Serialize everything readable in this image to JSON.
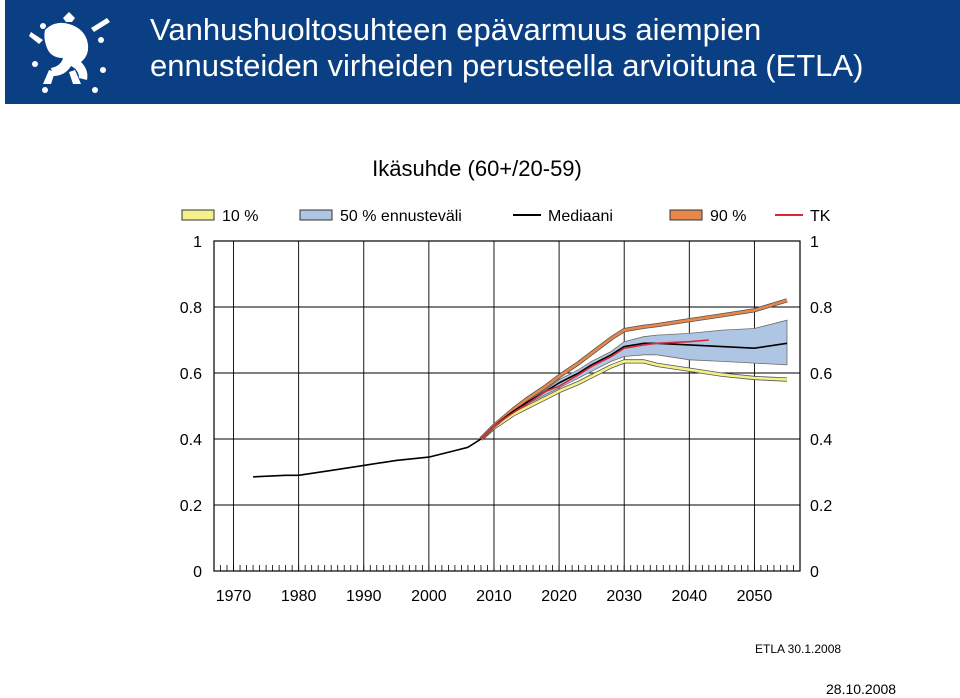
{
  "header": {
    "title_line1": "Vanhushuoltosuhteen epävarmuus aiempien",
    "title_line2": "ennusteiden virheiden perusteella arvioituna (ETLA)"
  },
  "footer": {
    "source": "ETLA 30.1.2008",
    "date": "28.10.2008"
  },
  "colors": {
    "header_bg": "#0a3f84",
    "band50": "#aec6e4",
    "p10": "#f4f08a",
    "p90": "#e8874a",
    "median": "#000000",
    "tk": "#d62a3a"
  },
  "chart_data": {
    "type": "line",
    "title": "Ikäsuhde (60+/20-59)",
    "x_ticks": [
      1970,
      1980,
      1990,
      2000,
      2010,
      2020,
      2030,
      2040,
      2050
    ],
    "y_ticks": [
      0,
      0.2,
      0.4,
      0.6,
      0.8,
      1
    ],
    "y_tick_labels": [
      "0",
      "0.2",
      "0.4",
      "0.6",
      "0.8",
      "1"
    ],
    "xlim": [
      1967,
      2057
    ],
    "ylim": [
      0,
      1
    ],
    "legend": [
      "10 %",
      "50 % ennusteväli",
      "Mediaani",
      "90 %",
      "TK"
    ],
    "series": [
      {
        "name": "Mediaani",
        "points": [
          [
            1973,
            0.285
          ],
          [
            1978,
            0.29
          ],
          [
            1980,
            0.29
          ],
          [
            1985,
            0.305
          ],
          [
            1990,
            0.32
          ],
          [
            1995,
            0.335
          ],
          [
            2000,
            0.345
          ],
          [
            2002,
            0.355
          ],
          [
            2004,
            0.365
          ],
          [
            2006,
            0.375
          ],
          [
            2008,
            0.4
          ],
          [
            2010,
            0.44
          ],
          [
            2013,
            0.485
          ],
          [
            2015,
            0.51
          ],
          [
            2018,
            0.545
          ],
          [
            2020,
            0.57
          ],
          [
            2023,
            0.6
          ],
          [
            2025,
            0.625
          ],
          [
            2028,
            0.655
          ],
          [
            2030,
            0.68
          ],
          [
            2033,
            0.69
          ],
          [
            2035,
            0.69
          ],
          [
            2040,
            0.685
          ],
          [
            2045,
            0.68
          ],
          [
            2050,
            0.675
          ],
          [
            2055,
            0.69
          ]
        ]
      },
      {
        "name": "10 %",
        "points": [
          [
            2008,
            0.4
          ],
          [
            2010,
            0.435
          ],
          [
            2013,
            0.475
          ],
          [
            2015,
            0.495
          ],
          [
            2018,
            0.525
          ],
          [
            2020,
            0.545
          ],
          [
            2023,
            0.57
          ],
          [
            2025,
            0.59
          ],
          [
            2028,
            0.62
          ],
          [
            2030,
            0.635
          ],
          [
            2033,
            0.635
          ],
          [
            2035,
            0.625
          ],
          [
            2040,
            0.61
          ],
          [
            2045,
            0.595
          ],
          [
            2050,
            0.585
          ],
          [
            2055,
            0.58
          ]
        ]
      },
      {
        "name": "90 %",
        "points": [
          [
            2008,
            0.4
          ],
          [
            2010,
            0.44
          ],
          [
            2013,
            0.49
          ],
          [
            2015,
            0.52
          ],
          [
            2018,
            0.56
          ],
          [
            2020,
            0.59
          ],
          [
            2023,
            0.63
          ],
          [
            2025,
            0.66
          ],
          [
            2028,
            0.705
          ],
          [
            2030,
            0.73
          ],
          [
            2033,
            0.74
          ],
          [
            2035,
            0.745
          ],
          [
            2040,
            0.76
          ],
          [
            2045,
            0.775
          ],
          [
            2050,
            0.79
          ],
          [
            2055,
            0.82
          ]
        ]
      },
      {
        "name": "50 % ennusteväli",
        "upper": [
          [
            2008,
            0.4
          ],
          [
            2010,
            0.44
          ],
          [
            2013,
            0.49
          ],
          [
            2015,
            0.515
          ],
          [
            2018,
            0.55
          ],
          [
            2020,
            0.58
          ],
          [
            2023,
            0.61
          ],
          [
            2025,
            0.635
          ],
          [
            2028,
            0.665
          ],
          [
            2030,
            0.695
          ],
          [
            2033,
            0.71
          ],
          [
            2035,
            0.715
          ],
          [
            2040,
            0.72
          ],
          [
            2045,
            0.73
          ],
          [
            2050,
            0.735
          ],
          [
            2055,
            0.76
          ]
        ],
        "lower": [
          [
            2008,
            0.4
          ],
          [
            2010,
            0.435
          ],
          [
            2013,
            0.48
          ],
          [
            2015,
            0.505
          ],
          [
            2018,
            0.535
          ],
          [
            2020,
            0.555
          ],
          [
            2023,
            0.585
          ],
          [
            2025,
            0.605
          ],
          [
            2028,
            0.635
          ],
          [
            2030,
            0.65
          ],
          [
            2033,
            0.655
          ],
          [
            2035,
            0.655
          ],
          [
            2040,
            0.64
          ],
          [
            2045,
            0.635
          ],
          [
            2050,
            0.63
          ],
          [
            2055,
            0.625
          ]
        ]
      },
      {
        "name": "TK",
        "points": [
          [
            2008,
            0.4
          ],
          [
            2010,
            0.44
          ],
          [
            2013,
            0.48
          ],
          [
            2015,
            0.505
          ],
          [
            2018,
            0.545
          ],
          [
            2020,
            0.56
          ],
          [
            2023,
            0.595
          ],
          [
            2025,
            0.62
          ],
          [
            2028,
            0.65
          ],
          [
            2030,
            0.675
          ],
          [
            2033,
            0.685
          ],
          [
            2035,
            0.69
          ],
          [
            2040,
            0.695
          ],
          [
            2043,
            0.7
          ]
        ]
      }
    ]
  }
}
